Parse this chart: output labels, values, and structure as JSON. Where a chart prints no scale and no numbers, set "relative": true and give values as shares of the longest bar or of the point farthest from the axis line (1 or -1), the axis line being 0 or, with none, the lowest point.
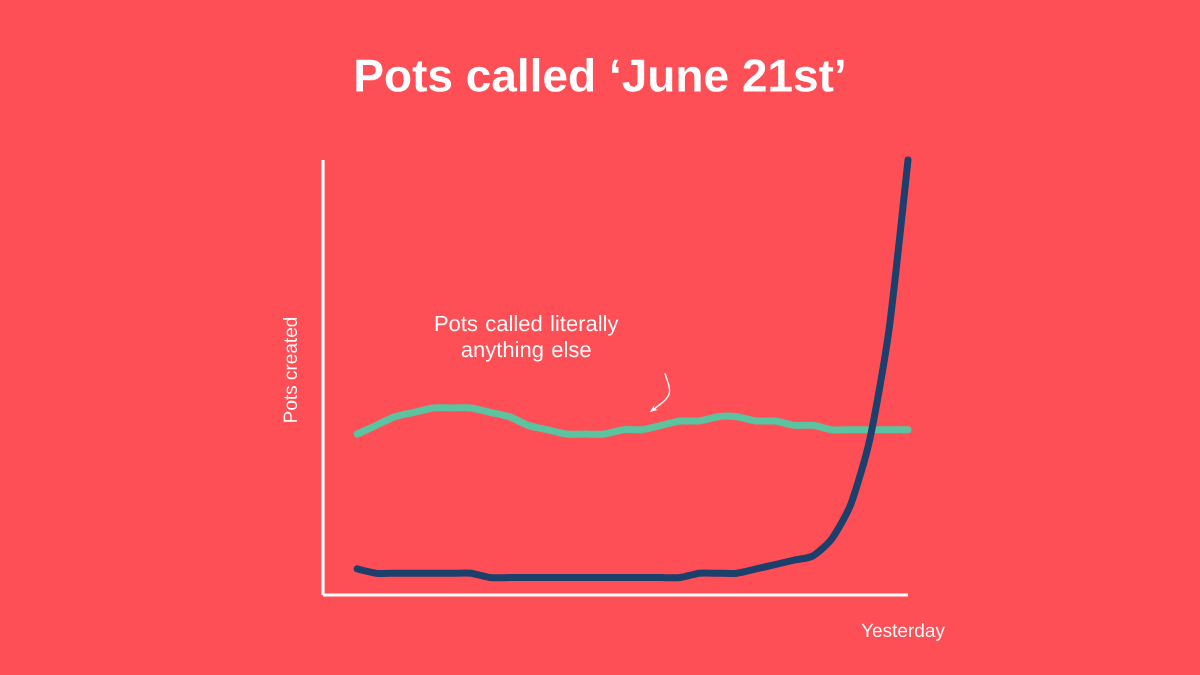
{
  "chart_data": {
    "type": "line",
    "title": "Pots called ‘June 21st’",
    "xlabel": "Yesterday",
    "ylabel": "Pots created",
    "relative": true,
    "categories": [
      null,
      null,
      null,
      null,
      null,
      null,
      null,
      null,
      null,
      null,
      null,
      null,
      null,
      null,
      null,
      null,
      null,
      null,
      null,
      null,
      null,
      null,
      null,
      null,
      null,
      null,
      null,
      null,
      null,
      null
    ],
    "series": [
      {
        "name": "Pots called literally anything else",
        "color": "#5cc3a0",
        "values": [
          0.37,
          0.39,
          0.41,
          0.42,
          0.43,
          0.43,
          0.43,
          0.42,
          0.41,
          0.39,
          0.38,
          0.37,
          0.37,
          0.37,
          0.38,
          0.38,
          0.39,
          0.4,
          0.4,
          0.41,
          0.41,
          0.4,
          0.4,
          0.39,
          0.39,
          0.38,
          0.38,
          0.38,
          0.38,
          0.38
        ]
      },
      {
        "color": "#1c3f6b",
        "values": [
          0.06,
          0.05,
          0.05,
          0.05,
          0.05,
          0.05,
          0.05,
          0.04,
          0.04,
          0.04,
          0.04,
          0.04,
          0.04,
          0.04,
          0.04,
          0.04,
          0.04,
          0.04,
          0.05,
          0.05,
          0.05,
          0.06,
          0.07,
          0.08,
          0.09,
          0.13,
          0.21,
          0.36,
          0.61,
          1
        ]
      }
    ]
  }
}
